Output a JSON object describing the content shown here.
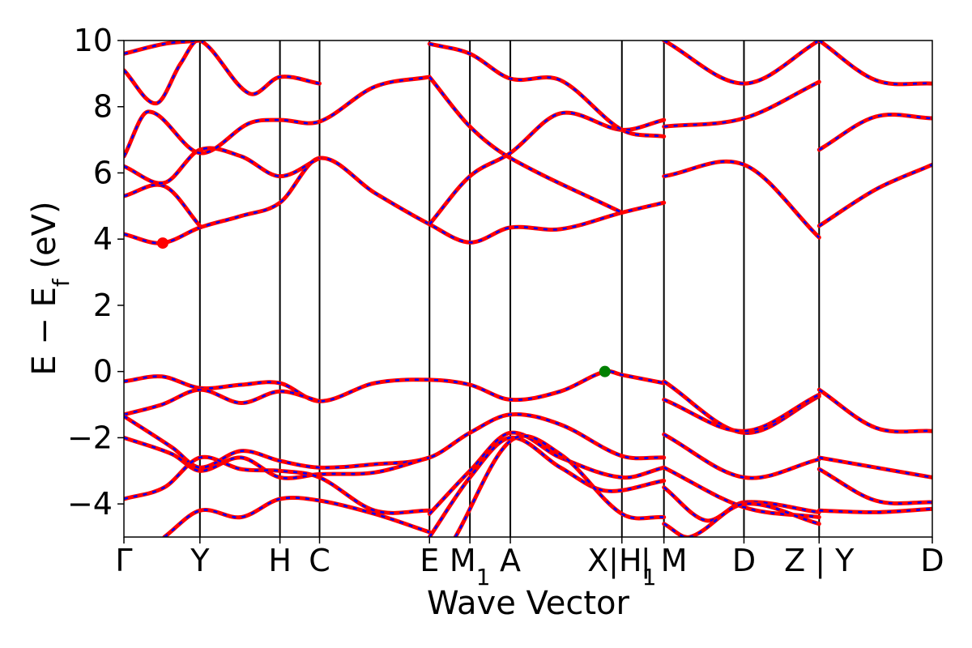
{
  "chart_data": {
    "type": "line",
    "title": "",
    "xlabel": "Wave Vector",
    "ylabel": "E − E",
    "ylabel_sub": "f",
    "ylabel_unit": " (eV)",
    "ylim": [
      -5,
      10
    ],
    "yticks": [
      -4,
      -2,
      0,
      2,
      4,
      6,
      8,
      10
    ],
    "ytick_labels": [
      "−4",
      "−2",
      "0",
      "2",
      "4",
      "6",
      "8",
      "10"
    ],
    "xlim": [
      0,
      10
    ],
    "kpoints": [
      {
        "x": 0.0,
        "label": "Γ"
      },
      {
        "x": 0.94,
        "label": "Y"
      },
      {
        "x": 1.93,
        "label": "H"
      },
      {
        "x": 2.42,
        "label": "C"
      },
      {
        "x": 3.78,
        "label": "E"
      },
      {
        "x": 4.28,
        "label": "M",
        "sub": "1"
      },
      {
        "x": 4.78,
        "label": "A"
      },
      {
        "x": 6.16,
        "label": "X|H",
        "sub": "1"
      },
      {
        "x": 6.68,
        "label": "| M"
      },
      {
        "x": 7.67,
        "label": "D"
      },
      {
        "x": 8.6,
        "label": "Z | Y"
      },
      {
        "x": 10.0,
        "label": "D"
      }
    ],
    "vbm": {
      "x": 5.95,
      "y": 0.0,
      "color": "#008000"
    },
    "cbm": {
      "x": 0.48,
      "y": 3.88,
      "color": "#ff0000"
    },
    "colors": {
      "dft": "#0000ff",
      "wannier": "#ff0000"
    },
    "series": [
      {
        "x": [
          0,
          0.47,
          0.94,
          1.45,
          1.93,
          2.42,
          3.1,
          3.78,
          4.28,
          4.78,
          5.4,
          6.16,
          6.68
        ],
        "y": [
          4.15,
          3.88,
          4.35,
          4.7,
          5.1,
          6.45,
          5.4,
          4.45,
          3.9,
          4.35,
          4.3,
          4.8,
          5.1
        ]
      },
      {
        "x": [
          0,
          0.5,
          0.94
        ],
        "y": [
          5.3,
          5.6,
          4.4
        ]
      },
      {
        "x": [
          0,
          0.5,
          0.94,
          1.45,
          1.93,
          2.42
        ],
        "y": [
          6.2,
          5.7,
          6.7,
          6.5,
          5.9,
          6.45
        ]
      },
      {
        "x": [
          0,
          0.3,
          0.94,
          1.55,
          1.93,
          2.42,
          3.1,
          3.78
        ],
        "y": [
          6.5,
          7.85,
          6.6,
          7.5,
          7.6,
          7.55,
          8.6,
          8.9
        ]
      },
      {
        "x": [
          0,
          0.4,
          0.7,
          0.94,
          1.55,
          1.93,
          2.42
        ],
        "y": [
          9.1,
          8.1,
          9.3,
          10.0,
          8.4,
          8.9,
          8.7
        ]
      },
      {
        "x": [
          0,
          0.5,
          0.94
        ],
        "y": [
          9.6,
          9.9,
          10.0
        ]
      },
      {
        "x": [
          3.78,
          4.28,
          4.78,
          6.16
        ],
        "y": [
          8.9,
          7.4,
          6.45,
          4.8
        ]
      },
      {
        "x": [
          3.78,
          4.28,
          4.78,
          5.4,
          6.16,
          6.68
        ],
        "y": [
          4.45,
          5.9,
          6.6,
          7.8,
          7.3,
          7.6
        ]
      },
      {
        "x": [
          3.78,
          4.28,
          4.78,
          5.4,
          6.16,
          6.68
        ],
        "y": [
          9.9,
          9.6,
          8.85,
          8.8,
          7.3,
          7.1
        ]
      },
      {
        "x": [
          6.68,
          7.67,
          8.6
        ],
        "y": [
          5.9,
          6.25,
          4.05
        ]
      },
      {
        "x": [
          6.68,
          7.67,
          8.6
        ],
        "y": [
          7.4,
          7.65,
          8.75
        ]
      },
      {
        "x": [
          6.68,
          7.67,
          8.6
        ],
        "y": [
          10.0,
          8.7,
          10.0
        ]
      },
      {
        "x": [
          8.6,
          9.3,
          10.0
        ],
        "y": [
          4.4,
          5.5,
          6.25
        ]
      },
      {
        "x": [
          8.6,
          9.3,
          10.0
        ],
        "y": [
          6.7,
          7.7,
          7.65
        ]
      },
      {
        "x": [
          8.6,
          9.3,
          10.0
        ],
        "y": [
          10.0,
          8.8,
          8.7
        ]
      },
      {
        "x": [
          0,
          0.47,
          0.94,
          1.45,
          1.93,
          2.42,
          3.1,
          3.78,
          4.28,
          4.78,
          5.4,
          5.95,
          6.16,
          6.68
        ],
        "y": [
          -0.3,
          -0.15,
          -0.5,
          -0.4,
          -0.35,
          -0.9,
          -0.35,
          -0.25,
          -0.4,
          -0.85,
          -0.6,
          0.0,
          -0.1,
          -0.35
        ]
      },
      {
        "x": [
          0,
          0.47,
          0.94,
          1.45,
          1.93,
          2.42
        ],
        "y": [
          -1.3,
          -1.0,
          -0.55,
          -0.95,
          -0.6,
          -0.9
        ]
      },
      {
        "x": [
          0,
          0.6,
          0.94,
          1.45,
          1.93,
          2.42,
          3.1,
          3.78,
          4.28,
          4.78,
          5.4,
          6.16,
          6.68
        ],
        "y": [
          -1.35,
          -2.3,
          -2.9,
          -2.4,
          -2.7,
          -2.9,
          -2.8,
          -2.6,
          -1.85,
          -1.3,
          -1.6,
          -2.55,
          -2.6
        ]
      },
      {
        "x": [
          0,
          0.6,
          0.94,
          1.45,
          1.93,
          2.42,
          3.1,
          3.78
        ],
        "y": [
          -2.0,
          -2.5,
          -3.0,
          -2.6,
          -3.2,
          -3.1,
          -3.05,
          -2.6
        ]
      },
      {
        "x": [
          0,
          0.5,
          0.94,
          1.45,
          1.93,
          2.42,
          3.1,
          3.78
        ],
        "y": [
          -3.85,
          -3.5,
          -2.6,
          -2.95,
          -3.0,
          -3.2,
          -4.2,
          -4.2
        ]
      },
      {
        "x": [
          0.5,
          0.94,
          1.45,
          1.93,
          2.42,
          3.1,
          3.78
        ],
        "y": [
          -5.0,
          -4.2,
          -4.4,
          -3.85,
          -3.9,
          -4.3,
          -4.85
        ]
      },
      {
        "x": [
          3.78,
          4.28,
          4.78,
          5.4,
          6.16,
          6.68
        ],
        "y": [
          -4.3,
          -3.0,
          -1.85,
          -2.6,
          -3.2,
          -2.9
        ]
      },
      {
        "x": [
          3.78,
          4.28,
          4.78,
          5.4,
          5.95,
          6.68
        ],
        "y": [
          -5.0,
          -3.2,
          -2.0,
          -2.9,
          -3.6,
          -3.3
        ]
      },
      {
        "x": [
          4.1,
          4.78,
          5.4,
          6.16,
          6.68
        ],
        "y": [
          -5.0,
          -2.1,
          -2.5,
          -4.3,
          -4.4
        ]
      },
      {
        "x": [
          6.68,
          7.67,
          8.6
        ],
        "y": [
          -0.3,
          -1.85,
          -0.75
        ]
      },
      {
        "x": [
          6.68,
          7.67,
          8.6
        ],
        "y": [
          -0.85,
          -1.8,
          -0.7
        ]
      },
      {
        "x": [
          6.68,
          7.67,
          8.6
        ],
        "y": [
          -1.9,
          -3.2,
          -2.65
        ]
      },
      {
        "x": [
          6.68,
          7.67,
          8.6
        ],
        "y": [
          -2.9,
          -4.1,
          -4.4
        ]
      },
      {
        "x": [
          6.68,
          7.2,
          7.67,
          8.6
        ],
        "y": [
          -3.5,
          -4.5,
          -3.95,
          -4.25
        ]
      },
      {
        "x": [
          6.68,
          7.0,
          7.67,
          8.6
        ],
        "y": [
          -4.6,
          -5.0,
          -4.0,
          -4.6
        ]
      },
      {
        "x": [
          8.6,
          9.3,
          10.0
        ],
        "y": [
          -0.55,
          -1.7,
          -1.8
        ]
      },
      {
        "x": [
          8.6,
          9.3,
          10.0
        ],
        "y": [
          -2.6,
          -2.9,
          -3.2
        ]
      },
      {
        "x": [
          8.6,
          9.3,
          10.0
        ],
        "y": [
          -2.95,
          -3.9,
          -3.95
        ]
      },
      {
        "x": [
          8.6,
          9.3,
          10.0
        ],
        "y": [
          -4.2,
          -4.25,
          -4.15
        ]
      }
    ]
  }
}
